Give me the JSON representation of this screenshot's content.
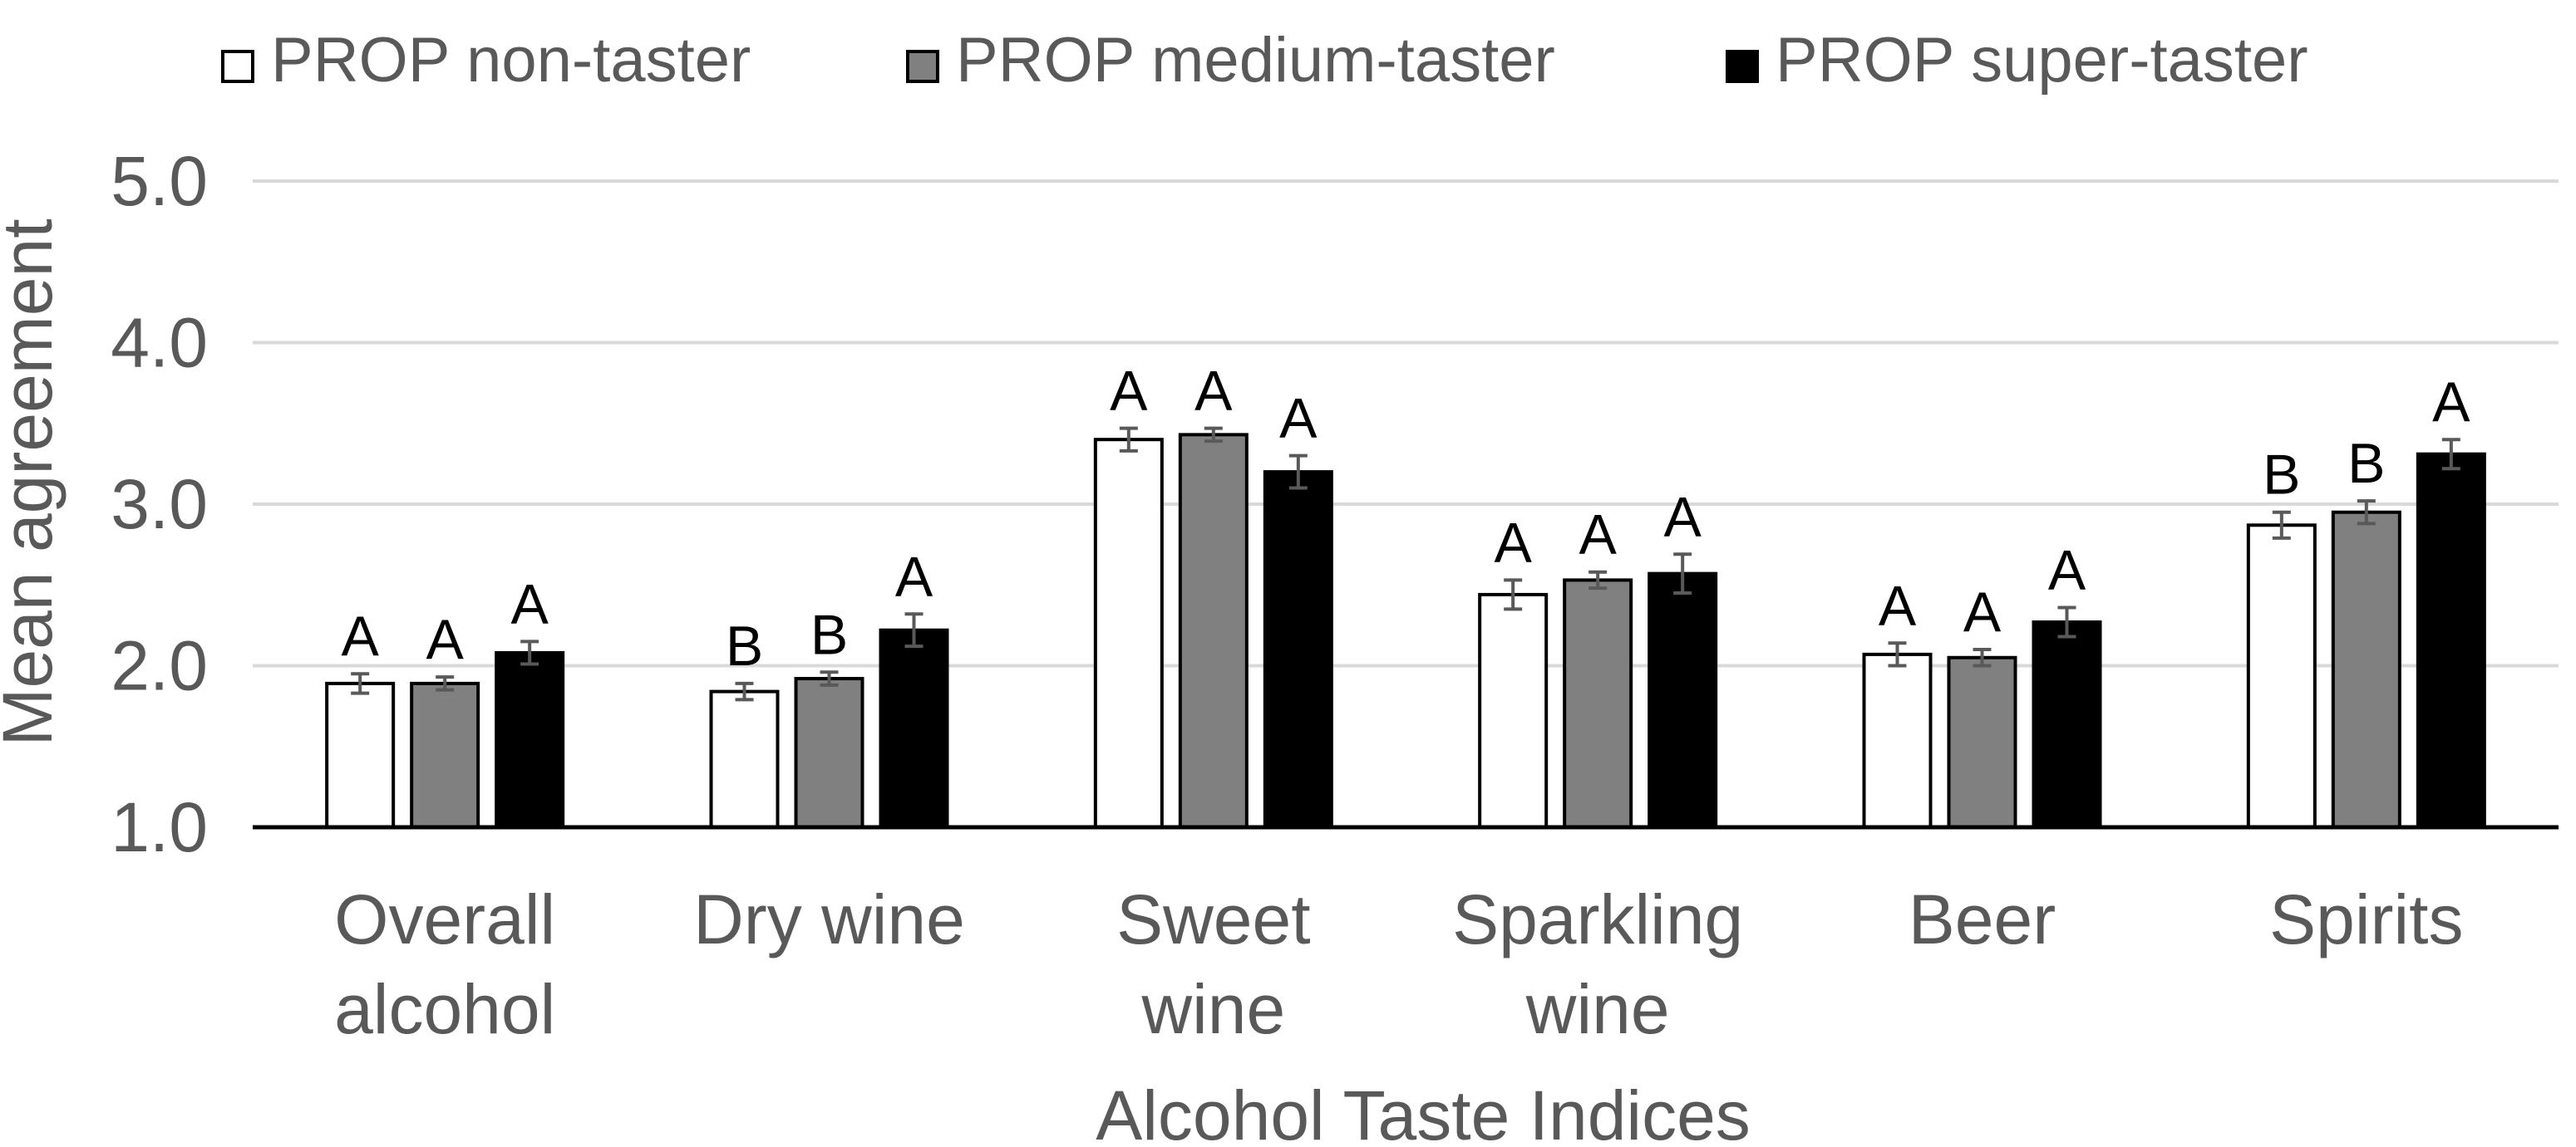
{
  "chart_data": {
    "type": "bar",
    "title": "",
    "xlabel": "Alcohol Taste Indices",
    "ylabel": "Mean agreement",
    "ylim": [
      1.0,
      5.0
    ],
    "yticks": [
      "1.0",
      "2.0",
      "3.0",
      "4.0",
      "5.0"
    ],
    "grid": true,
    "legend_position": "top",
    "categories": [
      [
        "Overall",
        "alcohol"
      ],
      [
        "Dry wine"
      ],
      [
        "Sweet",
        "wine"
      ],
      [
        "Sparkling",
        "wine"
      ],
      [
        "Beer"
      ],
      [
        "Spirits"
      ]
    ],
    "series": [
      {
        "name": "PROP non-taster",
        "color": "#ffffff",
        "values": [
          1.89,
          1.84,
          3.4,
          2.44,
          2.07,
          2.87
        ],
        "errors": [
          0.06,
          0.05,
          0.07,
          0.09,
          0.07,
          0.08
        ],
        "letters": [
          "A",
          "B",
          "A",
          "A",
          "A",
          "B"
        ]
      },
      {
        "name": "PROP medium-taster",
        "color": "#808080",
        "values": [
          1.89,
          1.92,
          3.43,
          2.53,
          2.05,
          2.95
        ],
        "errors": [
          0.04,
          0.04,
          0.04,
          0.05,
          0.05,
          0.07
        ],
        "letters": [
          "A",
          "B",
          "A",
          "A",
          "A",
          "B"
        ]
      },
      {
        "name": "PROP super-taster",
        "color": "#000000",
        "values": [
          2.08,
          2.22,
          3.2,
          2.57,
          2.27,
          3.31
        ],
        "errors": [
          0.07,
          0.1,
          0.1,
          0.12,
          0.09,
          0.09
        ],
        "letters": [
          "A",
          "A",
          "A",
          "A",
          "A",
          "A"
        ]
      }
    ]
  }
}
